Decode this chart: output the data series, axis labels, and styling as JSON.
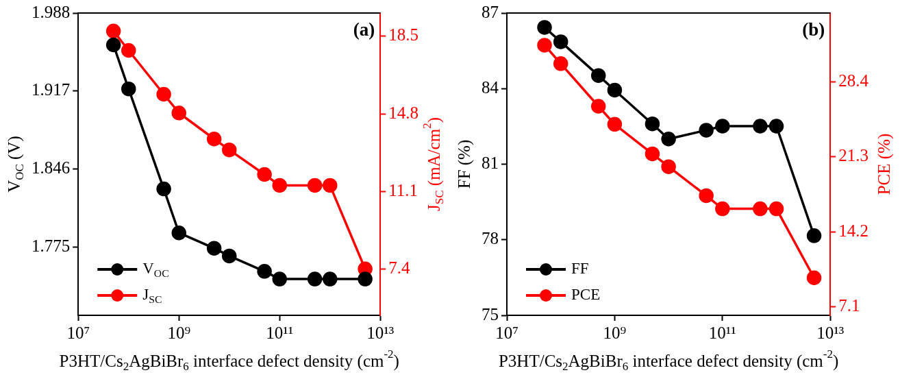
{
  "chart_data": [
    {
      "type": "line",
      "title": "(a)",
      "xlabel": "P3HT/Cs$_{2}$AgBiBr$_{6}$ interface defect density (cm$^{-2}$)",
      "ylabel": "V$_{OC}$ (V)",
      "y2label": "J$_{SC}$ (mA/cm$^{2}$)",
      "x": [
        50000000.0,
        100000000.0,
        500000000.0,
        1000000000.0,
        5000000000.0,
        10000000000.0,
        50000000000.0,
        100000000000.0,
        500000000000.0,
        1000000000000.0,
        5000000000000.0
      ],
      "series": [
        {
          "name": "V$_{OC}$",
          "color": "#000000",
          "values": [
            1.959,
            1.919,
            1.828,
            1.788,
            1.774,
            1.767,
            1.753,
            1.746,
            1.746,
            1.746,
            1.746
          ]
        },
        {
          "name": "J$_{SC}$",
          "color": "#ff0000",
          "axis": "y2",
          "values": [
            18.74,
            17.82,
            15.73,
            14.84,
            13.6,
            13.08,
            11.91,
            11.39,
            11.39,
            11.39,
            7.41
          ]
        }
      ],
      "log": "x",
      "xlim": [
        10000000.0,
        10000000000000.0
      ],
      "xticks": [
        {
          "value": 10000000.0,
          "label": "10⁷"
        },
        {
          "value": 1000000000.0,
          "label": "10⁹"
        },
        {
          "value": 100000000000.0,
          "label": "10¹¹"
        },
        {
          "value": 10000000000000.0,
          "label": "10¹³"
        }
      ],
      "ylim": [
        1.713,
        1.988
      ],
      "yticks": [
        1.775,
        1.846,
        1.917,
        1.988
      ],
      "y2lim": [
        5.2,
        19.6
      ],
      "y2ticks": [
        7.4,
        11.1,
        14.8,
        18.5
      ],
      "grid": false,
      "legend": "bottom left",
      "marker": "circle",
      "line_style": "solid"
    },
    {
      "type": "line",
      "title": "(b)",
      "xlabel": "P3HT/Cs$_{2}$AgBiBr$_{6}$ interface defect density (cm$^{-2}$)",
      "ylabel": "FF (%)",
      "y2label": "PCE (%)",
      "x": [
        50000000.0,
        100000000.0,
        500000000.0,
        1000000000.0,
        5000000000.0,
        10000000000.0,
        50000000000.0,
        100000000000.0,
        500000000000.0,
        1000000000000.0,
        5000000000000.0
      ],
      "series": [
        {
          "name": "FF",
          "color": "#000000",
          "values": [
            86.43,
            85.86,
            84.52,
            83.94,
            82.6,
            82.0,
            82.35,
            82.51,
            82.51,
            82.51,
            78.16
          ]
        },
        {
          "name": "PCE",
          "color": "#ff0000",
          "axis": "y2",
          "values": [
            31.86,
            30.11,
            26.08,
            24.37,
            21.58,
            20.36,
            17.62,
            16.38,
            16.38,
            16.38,
            9.85
          ]
        }
      ],
      "log": "x",
      "xlim": [
        10000000.0,
        10000000000000.0
      ],
      "xticks": [
        {
          "value": 10000000.0,
          "label": "10⁷"
        },
        {
          "value": 1000000000.0,
          "label": "10⁹"
        },
        {
          "value": 100000000000.0,
          "label": "10¹¹"
        },
        {
          "value": 10000000000000.0,
          "label": "10¹³"
        }
      ],
      "ylim": [
        75,
        87
      ],
      "yticks": [
        75,
        78,
        81,
        84,
        87
      ],
      "y2lim": [
        6.3,
        34.9
      ],
      "y2ticks": [
        7.1,
        14.2,
        21.3,
        28.4
      ],
      "grid": false,
      "legend": "bottom left",
      "marker": "circle",
      "line_style": "solid"
    }
  ]
}
